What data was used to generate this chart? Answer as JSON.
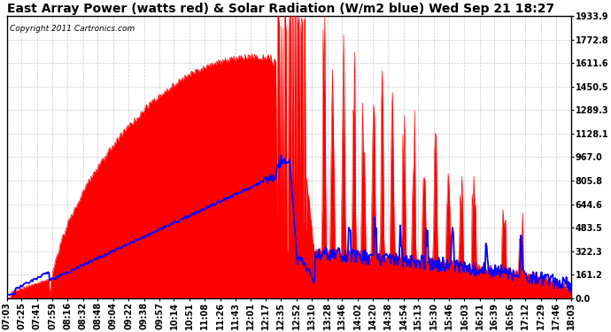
{
  "title": "East Array Power (watts red) & Solar Radiation (W/m2 blue) Wed Sep 21 18:27",
  "copyright": "Copyright 2011 Cartronics.com",
  "ylabel_right_ticks": [
    0.0,
    161.2,
    322.3,
    483.5,
    644.6,
    805.8,
    967.0,
    1128.1,
    1289.3,
    1450.5,
    1611.6,
    1772.8,
    1933.9
  ],
  "ymax": 1933.9,
  "bg_color": "#ffffff",
  "plot_bg_color": "#ffffff",
  "grid_color": "#bbbbbb",
  "red_color": "#ff0000",
  "blue_color": "#0000ff",
  "title_fontsize": 10,
  "tick_fontsize": 7,
  "copyright_fontsize": 6.5,
  "time_labels": [
    "07:03",
    "07:25",
    "07:41",
    "07:59",
    "08:16",
    "08:32",
    "08:48",
    "09:04",
    "09:22",
    "09:38",
    "09:57",
    "10:14",
    "10:51",
    "11:08",
    "11:26",
    "11:43",
    "12:01",
    "12:17",
    "12:35",
    "12:52",
    "13:10",
    "13:28",
    "13:46",
    "14:02",
    "14:20",
    "14:38",
    "14:54",
    "15:13",
    "15:30",
    "15:46",
    "16:03",
    "16:21",
    "16:39",
    "16:56",
    "17:12",
    "17:29",
    "17:46",
    "18:03"
  ]
}
